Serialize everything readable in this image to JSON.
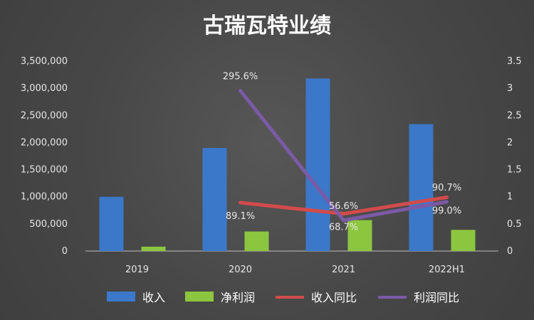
{
  "chart_data": {
    "type": "bar",
    "title": "古瑞瓦特业绩",
    "categories": [
      "2019",
      "2020",
      "2021",
      "2022H1"
    ],
    "y_left": {
      "ylim": [
        0,
        3500000
      ],
      "ticks": [
        0,
        500000,
        1000000,
        1500000,
        2000000,
        2500000,
        3000000,
        3500000
      ],
      "tick_labels": [
        "0",
        "500,000",
        "1,000,000",
        "1,500,000",
        "2,000,000",
        "2,500,000",
        "3,000,000",
        "3,500,000"
      ]
    },
    "y_right": {
      "ylim": [
        0,
        3.5
      ],
      "ticks": [
        0,
        0.5,
        1,
        1.5,
        2,
        2.5,
        3,
        3.5
      ],
      "tick_labels": [
        "0",
        "0.5",
        "1",
        "1.5",
        "2",
        "2.5",
        "3",
        "3.5"
      ]
    },
    "series": [
      {
        "name": "收入",
        "type": "bar",
        "axis": "left",
        "color": "#3b78c9",
        "values": [
          1000000,
          1900000,
          3180000,
          2340000
        ]
      },
      {
        "name": "净利润",
        "type": "bar",
        "axis": "left",
        "color": "#8cc63f",
        "values": [
          80000,
          360000,
          570000,
          390000
        ]
      },
      {
        "name": "收入同比",
        "type": "line",
        "axis": "right",
        "color": "#d24b4b",
        "values": [
          null,
          0.891,
          0.687,
          0.99
        ],
        "labels": [
          "",
          "89.1%",
          "68.7%",
          "99.0%"
        ]
      },
      {
        "name": "利润同比",
        "type": "line",
        "axis": "right",
        "color": "#7b5aa6",
        "values": [
          null,
          2.956,
          0.566,
          0.907
        ],
        "labels": [
          "",
          "295.6%",
          "56.6%",
          "90.7%"
        ]
      }
    ],
    "legend": [
      "收入",
      "净利润",
      "收入同比",
      "利润同比"
    ],
    "legend_position": "bottom",
    "grid": false
  }
}
